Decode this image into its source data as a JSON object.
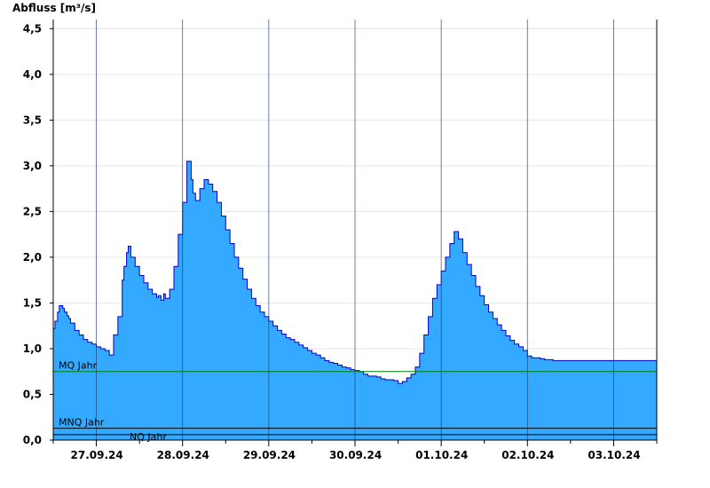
{
  "chart_data": {
    "type": "area",
    "ylabel": "Abfluss [m³/s]",
    "ylim": [
      0,
      4.6
    ],
    "y_ticks": [
      0.0,
      0.5,
      1.0,
      1.5,
      2.0,
      2.5,
      3.0,
      3.5,
      4.0,
      4.5
    ],
    "y_tick_labels": [
      "0,0",
      "0,5",
      "1,0",
      "1,5",
      "2,0",
      "2,5",
      "3,0",
      "3,5",
      "4,0",
      "4,5"
    ],
    "x_range_days": [
      "26.09.24 12:00",
      "03.10.24 12:00"
    ],
    "x_tick_labels": [
      "27.09.24",
      "28.09.24",
      "29.09.24",
      "30.09.24",
      "01.10.24",
      "02.10.24",
      "03.10.24"
    ],
    "grid": true,
    "colors": {
      "fill": "#33aaff",
      "outline": "#0000cc",
      "mq_line": "#008000",
      "ref_line": "#000000"
    },
    "reference_lines": [
      {
        "label": "MQ Jahr",
        "value": 0.75
      },
      {
        "label": "MNQ Jahr",
        "value": 0.13
      },
      {
        "label": "NQ Jahr",
        "value": 0.06
      }
    ],
    "x_offset_unit": "days from 26.09.24 12:00",
    "x": [
      0.0,
      0.02,
      0.05,
      0.07,
      0.09,
      0.11,
      0.13,
      0.16,
      0.18,
      0.2,
      0.25,
      0.3,
      0.35,
      0.4,
      0.45,
      0.5,
      0.55,
      0.6,
      0.65,
      0.7,
      0.75,
      0.8,
      0.82,
      0.85,
      0.87,
      0.9,
      0.95,
      1.0,
      1.05,
      1.1,
      1.15,
      1.2,
      1.22,
      1.25,
      1.28,
      1.3,
      1.35,
      1.4,
      1.45,
      1.5,
      1.55,
      1.6,
      1.62,
      1.65,
      1.7,
      1.75,
      1.8,
      1.85,
      1.9,
      1.95,
      2.0,
      2.05,
      2.1,
      2.15,
      2.2,
      2.25,
      2.3,
      2.35,
      2.4,
      2.45,
      2.5,
      2.55,
      2.6,
      2.65,
      2.7,
      2.75,
      2.8,
      2.85,
      2.9,
      2.95,
      3.0,
      3.05,
      3.1,
      3.15,
      3.2,
      3.25,
      3.3,
      3.35,
      3.4,
      3.45,
      3.5,
      3.55,
      3.6,
      3.65,
      3.7,
      3.75,
      3.8,
      3.85,
      3.9,
      3.95,
      4.0,
      4.05,
      4.1,
      4.15,
      4.2,
      4.25,
      4.3,
      4.35,
      4.4,
      4.45,
      4.5,
      4.55,
      4.6,
      4.65,
      4.7,
      4.75,
      4.8,
      4.85,
      4.9,
      4.95,
      5.0,
      5.05,
      5.1,
      5.15,
      5.2,
      5.25,
      5.3,
      5.35,
      5.4,
      5.45,
      5.5,
      5.55,
      5.6,
      5.65,
      5.7,
      5.75,
      5.8,
      5.85,
      5.9,
      5.95,
      6.0,
      6.05,
      6.1,
      6.15,
      6.2,
      6.25,
      6.3,
      6.35,
      6.4,
      6.45,
      6.5,
      6.55,
      6.6,
      6.65,
      6.7,
      6.75,
      6.8,
      6.85,
      6.9,
      6.95,
      7.0
    ],
    "y": [
      1.22,
      1.3,
      1.4,
      1.47,
      1.47,
      1.44,
      1.4,
      1.36,
      1.33,
      1.28,
      1.2,
      1.15,
      1.1,
      1.07,
      1.05,
      1.02,
      1.0,
      0.98,
      0.93,
      1.15,
      1.35,
      1.75,
      1.9,
      2.05,
      2.12,
      2.0,
      1.9,
      1.8,
      1.72,
      1.65,
      1.6,
      1.56,
      1.58,
      1.53,
      1.6,
      1.55,
      1.65,
      1.9,
      2.25,
      2.6,
      3.05,
      2.85,
      2.7,
      2.62,
      2.75,
      2.85,
      2.8,
      2.72,
      2.6,
      2.45,
      2.3,
      2.15,
      2.0,
      1.88,
      1.76,
      1.65,
      1.55,
      1.47,
      1.4,
      1.35,
      1.3,
      1.25,
      1.2,
      1.16,
      1.12,
      1.1,
      1.07,
      1.04,
      1.01,
      0.98,
      0.95,
      0.93,
      0.9,
      0.87,
      0.85,
      0.84,
      0.82,
      0.8,
      0.79,
      0.77,
      0.76,
      0.75,
      0.72,
      0.7,
      0.7,
      0.69,
      0.67,
      0.66,
      0.66,
      0.65,
      0.62,
      0.64,
      0.68,
      0.72,
      0.8,
      0.95,
      1.15,
      1.35,
      1.55,
      1.7,
      1.85,
      2.0,
      2.15,
      2.28,
      2.2,
      2.05,
      1.92,
      1.8,
      1.68,
      1.58,
      1.48,
      1.4,
      1.33,
      1.26,
      1.2,
      1.14,
      1.09,
      1.05,
      1.02,
      0.98,
      0.92,
      0.9,
      0.9,
      0.89,
      0.88,
      0.88,
      0.87,
      0.87,
      0.87,
      0.87,
      0.87,
      0.87,
      0.87,
      0.87,
      0.87,
      0.87,
      0.87,
      0.87,
      0.87,
      0.87,
      0.87,
      0.87,
      0.87,
      0.87,
      0.87,
      0.87,
      0.87,
      0.87,
      0.87,
      0.87,
      0.87
    ]
  }
}
